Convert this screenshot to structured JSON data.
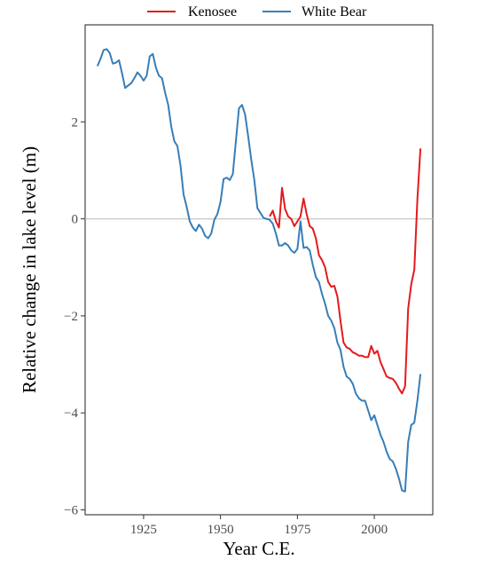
{
  "chart_data": {
    "type": "line",
    "xlabel": "Year C.E.",
    "ylabel": "Relative change in lake level (m)",
    "xlim": [
      1906,
      2019
    ],
    "ylim": [
      -6.1,
      4.0
    ],
    "xticks": [
      1925,
      1950,
      1975,
      2000
    ],
    "yticks": [
      -6,
      -4,
      -2,
      0,
      2
    ],
    "ytick_labels": [
      "−6",
      "−4",
      "−2",
      "0",
      "2"
    ],
    "reference_line": {
      "y": 0,
      "color": "#c8c8c8"
    },
    "grid": false,
    "legend_position": "top",
    "series": [
      {
        "name": "Kenosee",
        "color": "#e41a1c",
        "x": [
          1966,
          1967,
          1968,
          1969,
          1970,
          1971,
          1972,
          1973,
          1974,
          1975,
          1976,
          1977,
          1978,
          1979,
          1980,
          1981,
          1982,
          1983,
          1984,
          1985,
          1986,
          1987,
          1988,
          1989,
          1990,
          1991,
          1992,
          1993,
          1994,
          1995,
          1996,
          1997,
          1998,
          1999,
          2000,
          2001,
          2002,
          2003,
          2004,
          2005,
          2006,
          2007,
          2008,
          2009,
          2010,
          2011,
          2012,
          2013,
          2014,
          2015
        ],
        "y": [
          0.05,
          0.17,
          -0.05,
          -0.18,
          0.64,
          0.2,
          0.05,
          0.0,
          -0.15,
          -0.05,
          0.05,
          0.42,
          0.1,
          -0.15,
          -0.2,
          -0.4,
          -0.75,
          -0.85,
          -1.0,
          -1.3,
          -1.4,
          -1.38,
          -1.6,
          -2.1,
          -2.55,
          -2.65,
          -2.68,
          -2.75,
          -2.78,
          -2.82,
          -2.82,
          -2.85,
          -2.85,
          -2.62,
          -2.78,
          -2.72,
          -2.95,
          -3.1,
          -3.25,
          -3.28,
          -3.3,
          -3.38,
          -3.5,
          -3.6,
          -3.45,
          -1.85,
          -1.35,
          -1.05,
          0.4,
          1.45
        ]
      },
      {
        "name": "White Bear",
        "color": "#377eb8",
        "x": [
          1910,
          1911,
          1912,
          1913,
          1914,
          1915,
          1916,
          1917,
          1918,
          1919,
          1920,
          1921,
          1922,
          1923,
          1924,
          1925,
          1926,
          1927,
          1928,
          1929,
          1930,
          1931,
          1932,
          1933,
          1934,
          1935,
          1936,
          1937,
          1938,
          1939,
          1940,
          1941,
          1942,
          1943,
          1944,
          1945,
          1946,
          1947,
          1948,
          1949,
          1950,
          1951,
          1952,
          1953,
          1954,
          1955,
          1956,
          1957,
          1958,
          1959,
          1960,
          1961,
          1962,
          1963,
          1964,
          1965,
          1966,
          1967,
          1968,
          1969,
          1970,
          1971,
          1972,
          1973,
          1974,
          1975,
          1976,
          1977,
          1978,
          1979,
          1980,
          1981,
          1982,
          1983,
          1984,
          1985,
          1986,
          1987,
          1988,
          1989,
          1990,
          1991,
          1992,
          1993,
          1994,
          1995,
          1996,
          1997,
          1998,
          1999,
          2000,
          2001,
          2002,
          2003,
          2004,
          2005,
          2006,
          2007,
          2008,
          2009,
          2010,
          2011,
          2012,
          2013,
          2014,
          2015
        ],
        "y": [
          3.15,
          3.3,
          3.48,
          3.5,
          3.42,
          3.2,
          3.22,
          3.27,
          3.0,
          2.7,
          2.75,
          2.8,
          2.9,
          3.02,
          2.95,
          2.85,
          2.95,
          3.35,
          3.4,
          3.12,
          2.95,
          2.9,
          2.6,
          2.35,
          1.9,
          1.6,
          1.5,
          1.1,
          0.5,
          0.25,
          -0.05,
          -0.18,
          -0.25,
          -0.12,
          -0.2,
          -0.35,
          -0.4,
          -0.3,
          -0.02,
          0.1,
          0.35,
          0.82,
          0.85,
          0.8,
          0.92,
          1.6,
          2.28,
          2.35,
          2.15,
          1.7,
          1.22,
          0.8,
          0.22,
          0.12,
          0.02,
          0.0,
          -0.02,
          -0.1,
          -0.3,
          -0.55,
          -0.55,
          -0.5,
          -0.55,
          -0.65,
          -0.7,
          -0.62,
          -0.05,
          -0.6,
          -0.58,
          -0.65,
          -0.95,
          -1.2,
          -1.3,
          -1.55,
          -1.75,
          -2.0,
          -2.1,
          -2.25,
          -2.55,
          -2.7,
          -3.05,
          -3.25,
          -3.3,
          -3.4,
          -3.6,
          -3.7,
          -3.75,
          -3.75,
          -3.95,
          -4.15,
          -4.05,
          -4.25,
          -4.45,
          -4.6,
          -4.8,
          -4.95,
          -5.0,
          -5.15,
          -5.35,
          -5.6,
          -5.62,
          -4.6,
          -4.25,
          -4.2,
          -3.75,
          -3.2
        ]
      }
    ]
  }
}
